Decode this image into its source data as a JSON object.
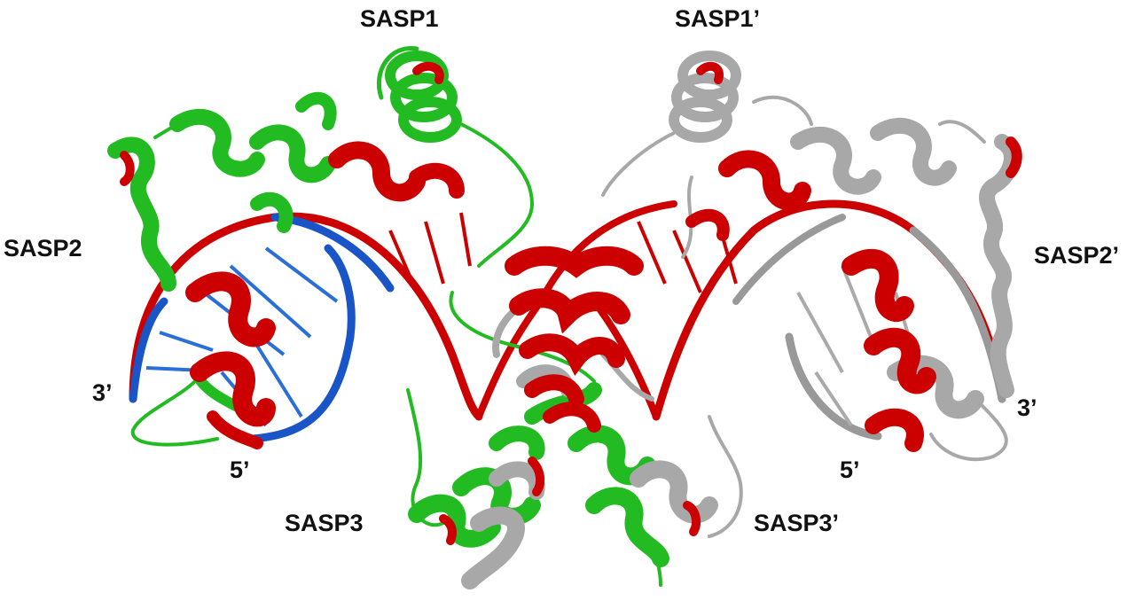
{
  "labels": {
    "sasp1": "SASP1",
    "sasp1p": "SASP1’",
    "sasp2": "SASP2",
    "sasp2p": "SASP2’",
    "sasp3": "SASP3",
    "sasp3p": "SASP3’",
    "end3_left": "3’",
    "end5_left": "5’",
    "end3_right": "3’",
    "end5_right": "5’"
  },
  "colors": {
    "chain_a": "#22bb22",
    "chain_b": "#a0a0a0",
    "dna_backbone": "#cc0000",
    "dna_bound_region": "#1a55c8",
    "contact_residues": "#cc0000"
  }
}
